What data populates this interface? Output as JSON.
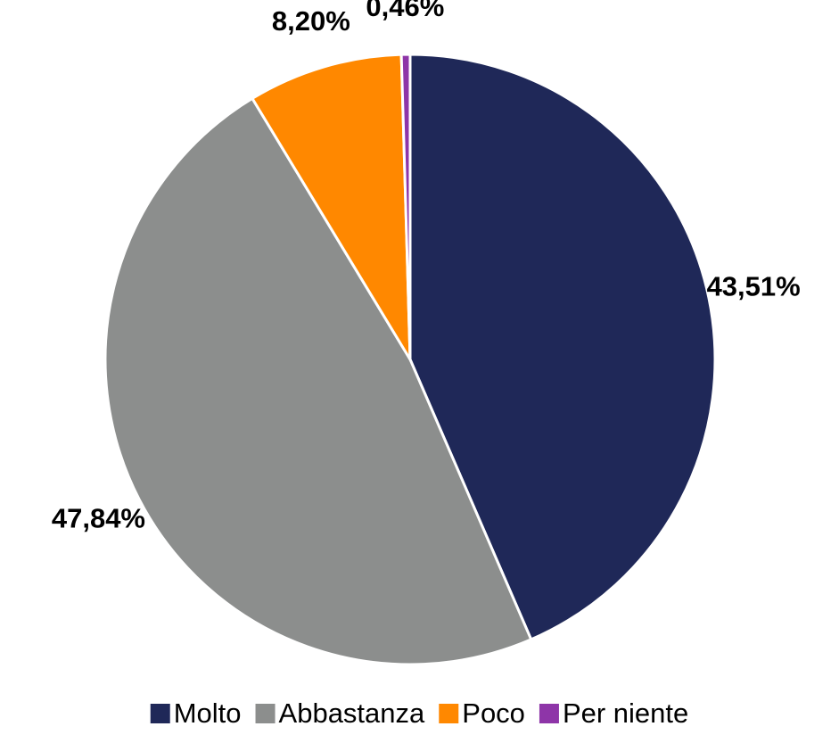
{
  "chart_data": {
    "type": "pie",
    "categories": [
      "Molto",
      "Abbastanza",
      "Poco",
      "Per niente"
    ],
    "values": [
      43.51,
      47.84,
      8.2,
      0.46
    ],
    "value_labels": [
      "43,51%",
      "47,84%",
      "8,20%",
      "0,46%"
    ],
    "colors": [
      "#1f2858",
      "#8c8e8d",
      "#ff8800",
      "#8e35a8"
    ],
    "legend": "bottom"
  }
}
